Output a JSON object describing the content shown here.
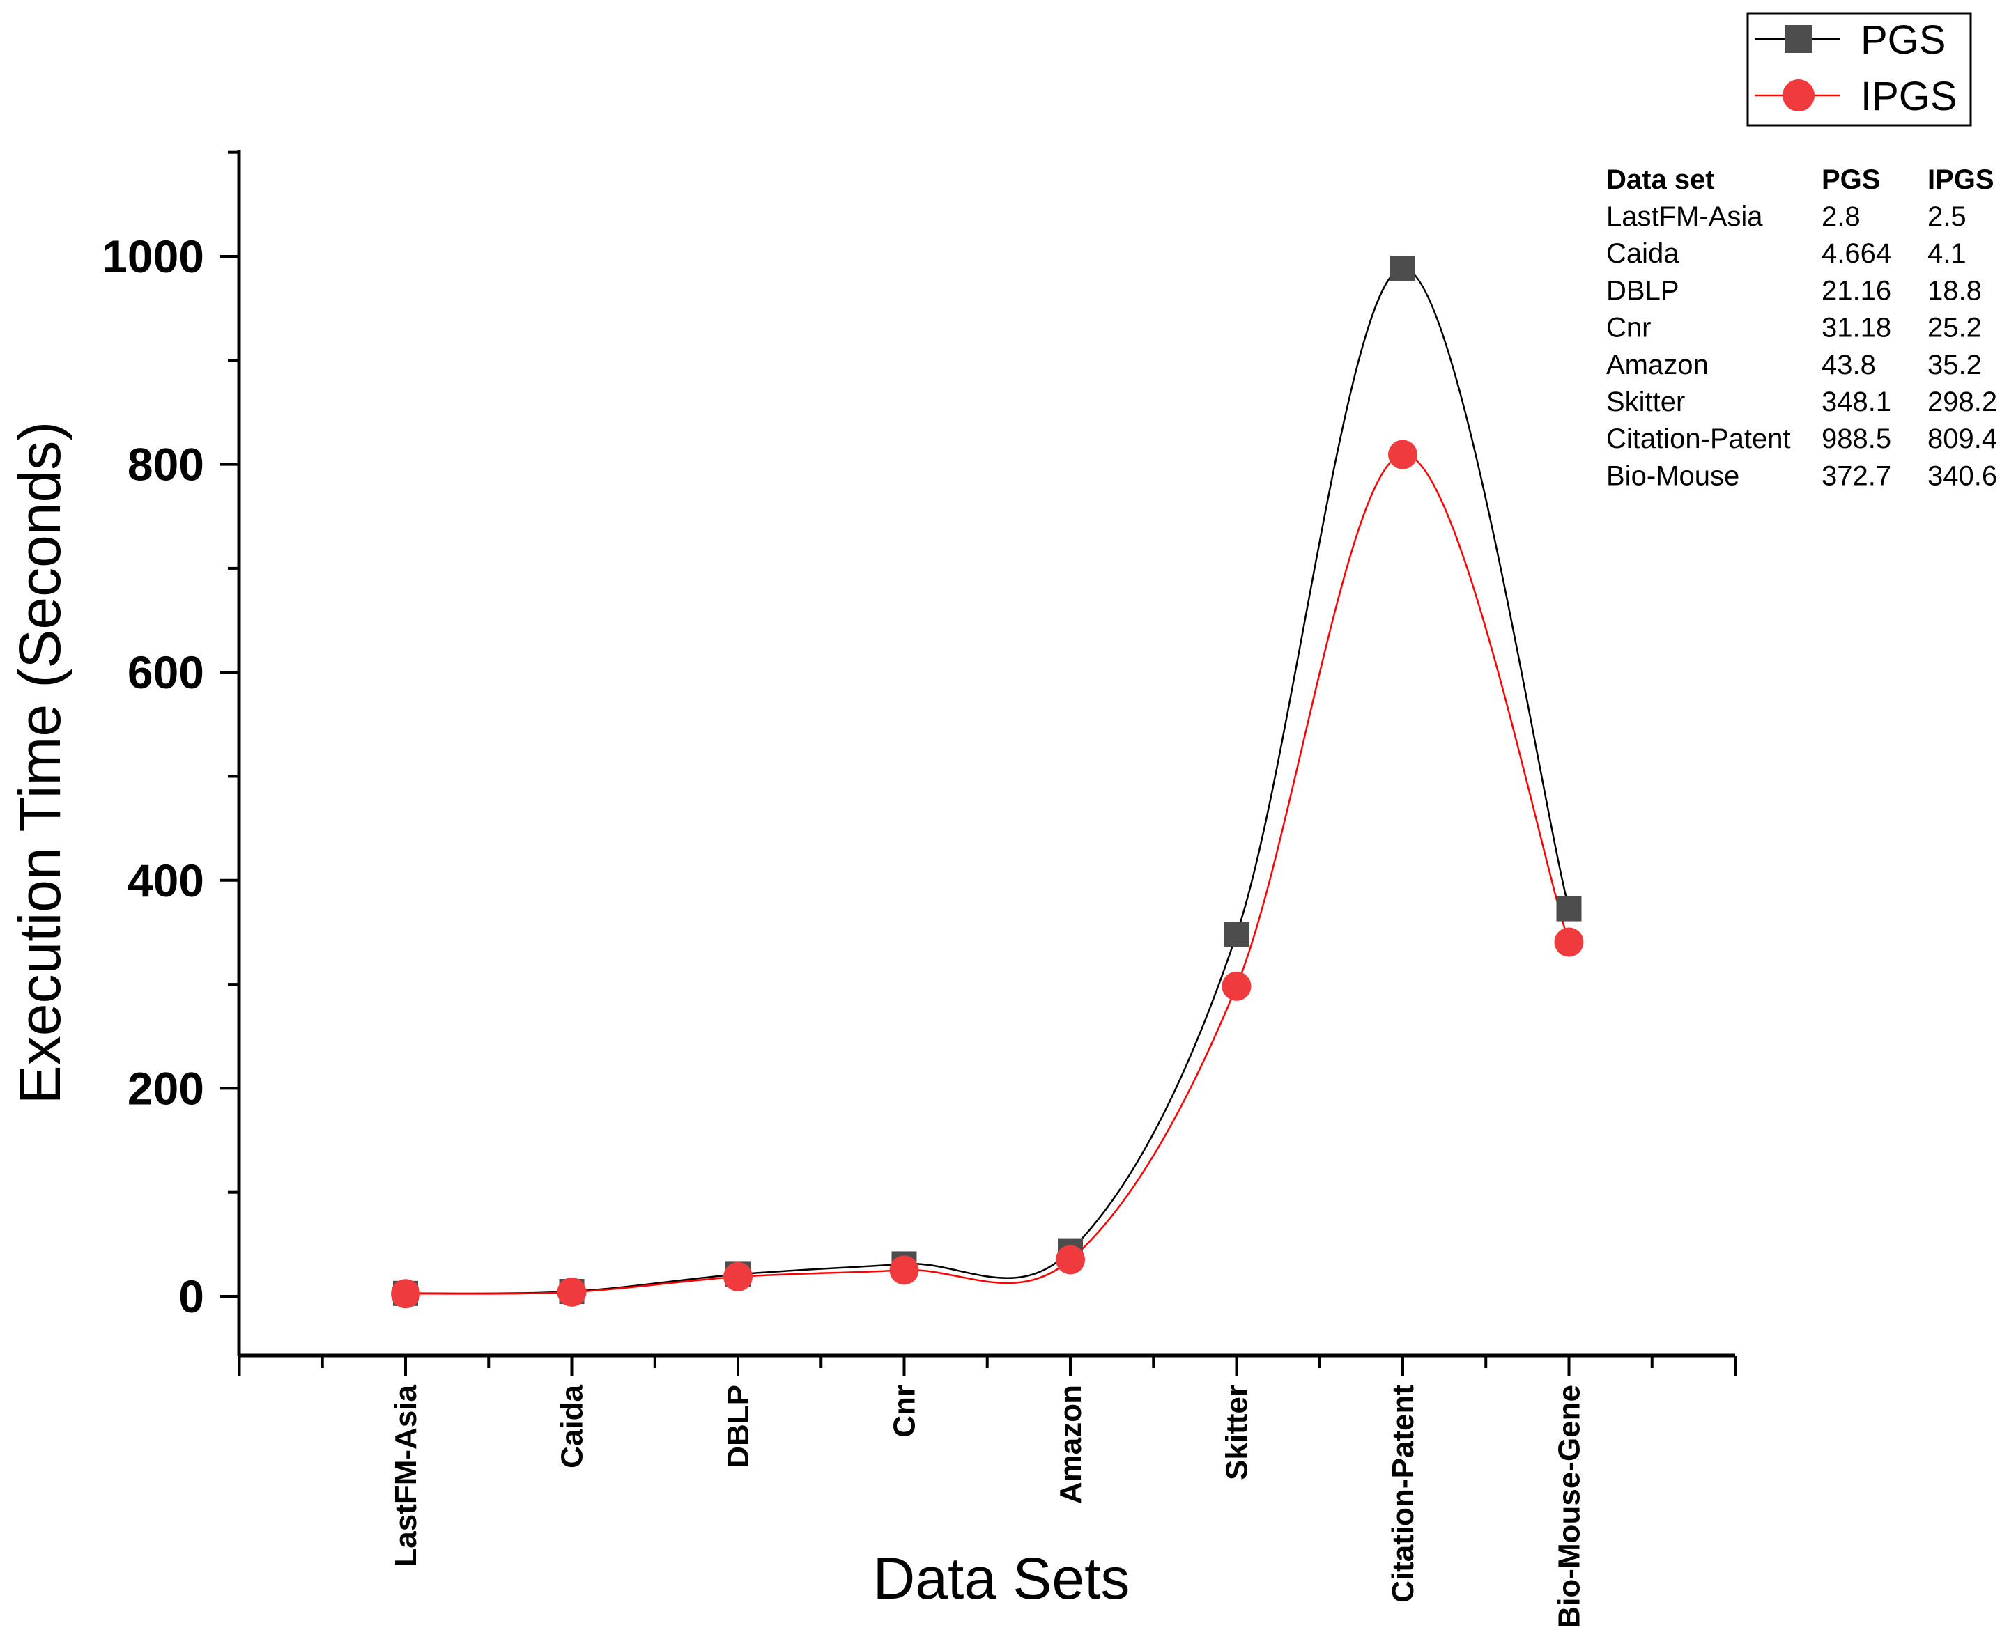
{
  "chart_data": {
    "type": "line",
    "xlabel": "Data Sets",
    "ylabel": "Execution Time (Seconds)",
    "ylim": [
      -60,
      1100
    ],
    "yticks": [
      0,
      200,
      400,
      600,
      800,
      1000
    ],
    "grid": false,
    "smooth": true,
    "categories": [
      "LastFM-Asia",
      "Caida",
      "DBLP",
      "Cnr",
      "Amazon",
      "Skitter",
      "Citation-Patent",
      "Bio-Mouse-Gene"
    ],
    "series": [
      {
        "name": "PGS",
        "marker": "square",
        "color": "#4d4d4d",
        "line_color": "#000000",
        "values": [
          2.8,
          4.664,
          21.16,
          31.18,
          43.8,
          348.1,
          988.5,
          372.7
        ]
      },
      {
        "name": "IPGS",
        "marker": "circle",
        "color": "#ef3b3e",
        "line_color": "#ff0000",
        "values": [
          2.5,
          4.1,
          18.8,
          25.2,
          35.2,
          298.2,
          809.4,
          340.6
        ]
      }
    ],
    "legend_position": "top-right",
    "inset_table": {
      "headers": [
        "Data set",
        "PGS",
        "IPGS"
      ],
      "rows": [
        [
          "LastFM-Asia",
          "2.8",
          "2.5"
        ],
        [
          "Caida",
          "4.664",
          "4.1"
        ],
        [
          "DBLP",
          "21.16",
          "18.8"
        ],
        [
          "Cnr",
          "31.18",
          "25.2"
        ],
        [
          "Amazon",
          "43.8",
          "35.2"
        ],
        [
          "Skitter",
          "348.1",
          "298.2"
        ],
        [
          "Citation-Patent",
          "988.5",
          "809.4"
        ],
        [
          "Bio-Mouse",
          "372.7",
          "340.6"
        ]
      ]
    }
  }
}
